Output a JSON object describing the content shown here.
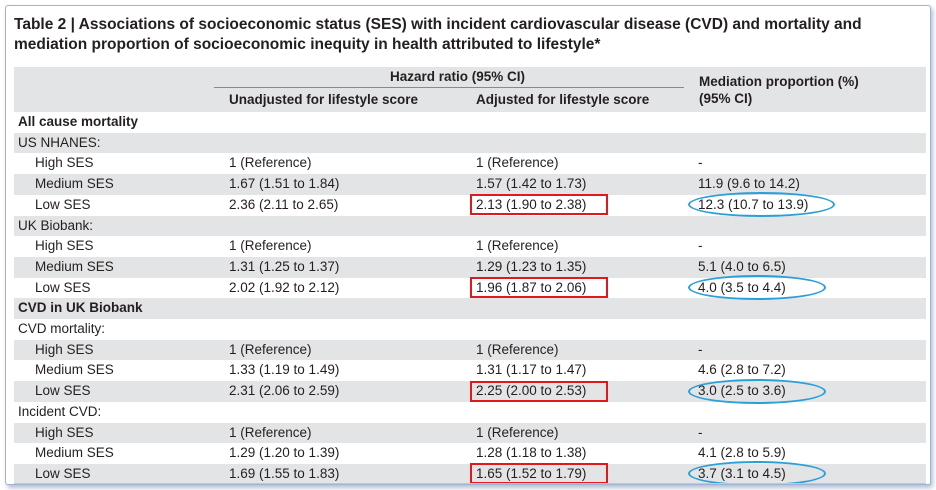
{
  "table": {
    "title_prefix": "Table 2",
    "title_sep": "|",
    "title_line1": "Associations of socioeconomic status (SES) with incident cardiovascular disease (CVD) and mortality and",
    "title_line2": "mediation proportion of socioeconomic inequity in health attributed to lifestyle*",
    "header": {
      "group": "Hazard ratio (95% CI)",
      "col1": "Unadjusted for lifestyle score",
      "col2": "Adjusted for lifestyle score",
      "col3_line1": "Mediation proportion (%)",
      "col3_line2": "(95% CI)"
    },
    "rows": [
      {
        "label": "All cause mortality",
        "type": "section",
        "c1": "",
        "c2": "",
        "c3": ""
      },
      {
        "label": "US NHANES:",
        "type": "subsection",
        "c1": "",
        "c2": "",
        "c3": ""
      },
      {
        "label": "High SES",
        "type": "data",
        "c1": "1 (Reference)",
        "c2": "1 (Reference)",
        "c3": "-"
      },
      {
        "label": "Medium SES",
        "type": "data",
        "c1": "1.67 (1.51 to 1.84)",
        "c2": "1.57 (1.42 to 1.73)",
        "c3": "11.9 (9.6 to 14.2)"
      },
      {
        "label": "Low SES",
        "type": "data",
        "c1": "2.36 (2.11 to 2.65)",
        "c2": "2.13 (1.90 to 2.38)",
        "c3": "12.3 (10.7 to 13.9)"
      },
      {
        "label": "UK Biobank:",
        "type": "subsection",
        "c1": "",
        "c2": "",
        "c3": ""
      },
      {
        "label": "High SES",
        "type": "data",
        "c1": "1 (Reference)",
        "c2": "1 (Reference)",
        "c3": "-"
      },
      {
        "label": "Medium SES",
        "type": "data",
        "c1": "1.31 (1.25 to 1.37)",
        "c2": "1.29 (1.23 to 1.35)",
        "c3": "5.1 (4.0 to 6.5)"
      },
      {
        "label": "Low SES",
        "type": "data",
        "c1": "2.02 (1.92 to 2.12)",
        "c2": "1.96 (1.87 to 2.06)",
        "c3": "4.0 (3.5 to 4.4)"
      },
      {
        "label": "CVD in UK Biobank",
        "type": "section",
        "c1": "",
        "c2": "",
        "c3": ""
      },
      {
        "label": "CVD mortality:",
        "type": "subsection",
        "c1": "",
        "c2": "",
        "c3": ""
      },
      {
        "label": "High SES",
        "type": "data",
        "c1": "1 (Reference)",
        "c2": "1 (Reference)",
        "c3": "-"
      },
      {
        "label": "Medium SES",
        "type": "data",
        "c1": "1.33 (1.19 to 1.49)",
        "c2": "1.31 (1.17 to 1.47)",
        "c3": "4.6 (2.8 to 7.2)"
      },
      {
        "label": "Low SES",
        "type": "data",
        "c1": "2.31 (2.06 to 2.59)",
        "c2": "2.25 (2.00 to 2.53)",
        "c3": "3.0 (2.5 to 3.6)"
      },
      {
        "label": "Incident CVD:",
        "type": "subsection",
        "c1": "",
        "c2": "",
        "c3": ""
      },
      {
        "label": "High SES",
        "type": "data",
        "c1": "1 (Reference)",
        "c2": "1 (Reference)",
        "c3": "-"
      },
      {
        "label": "Medium SES",
        "type": "data",
        "c1": "1.29 (1.20 to 1.39)",
        "c2": "1.28 (1.18 to 1.38)",
        "c3": "4.1 (2.8 to 5.9)"
      },
      {
        "label": "Low SES",
        "type": "data",
        "c1": "1.69 (1.55 to 1.83)",
        "c2": "1.65 (1.52 to 1.79)",
        "c3": "3.7 (3.1 to 4.5)"
      }
    ],
    "highlighted_rows": [
      4,
      8,
      13,
      17
    ],
    "colors": {
      "red_box": "#e0191c",
      "blue_ellipse": "#2a9fd8",
      "shade": "#e3e4e5"
    }
  }
}
